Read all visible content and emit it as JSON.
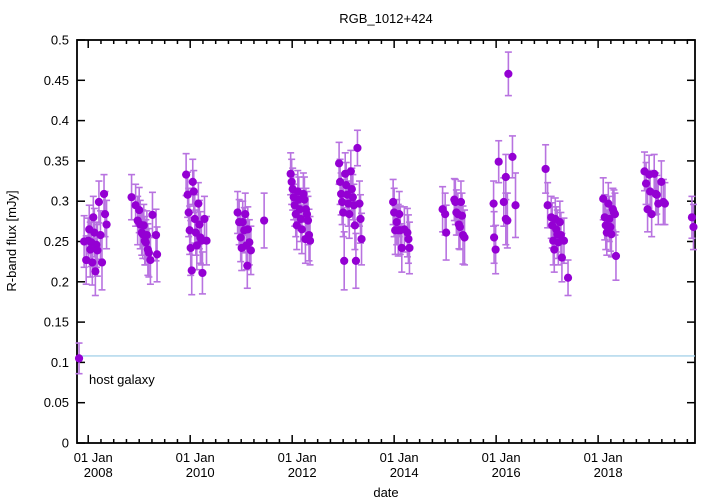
{
  "chart_data": {
    "type": "scatter",
    "title": "RGB_1012+424",
    "xlabel": "date",
    "ylabel": "R-band flux [mJy]",
    "grid": false,
    "legend": "none",
    "x_axis": {
      "range": [
        2007.78,
        2019.9
      ],
      "tick_years": [
        2008,
        2010,
        2012,
        2014,
        2016,
        2018
      ],
      "tick_label_line1": "01 Jan",
      "minor_tick_interval_years": 0.25
    },
    "y_axis": {
      "range": [
        0,
        0.5
      ],
      "tick_values": [
        0,
        0.05,
        0.1,
        0.15,
        0.2,
        0.25,
        0.3,
        0.35,
        0.4,
        0.45,
        0.5
      ],
      "tick_labels": [
        "0",
        "0.05",
        "0.1",
        "0.15",
        "0.2",
        "0.25",
        "0.3",
        "0.35",
        "0.4",
        "0.45",
        "0.5"
      ]
    },
    "host_galaxy_line": {
      "label": "host galaxy",
      "value": 0.108,
      "color": "#a9d4ea"
    },
    "series": [
      {
        "name": "R-band flux measurements",
        "marker": "filled-circle",
        "point_color": "#9400d3",
        "errorbar_color": "#b873e0",
        "points_format": [
          "date_decimal_year",
          "flux_mJy",
          "error_mJy"
        ],
        "points": [
          [
            2007.82,
            0.105,
            0.019
          ],
          [
            2007.92,
            0.25,
            0.032
          ],
          [
            2007.96,
            0.227,
            0.03
          ],
          [
            2008.0,
            0.251,
            0.028
          ],
          [
            2008.02,
            0.265,
            0.03
          ],
          [
            2008.04,
            0.24,
            0.034
          ],
          [
            2008.06,
            0.249,
            0.03
          ],
          [
            2008.08,
            0.224,
            0.028
          ],
          [
            2008.1,
            0.28,
            0.026
          ],
          [
            2008.12,
            0.261,
            0.03
          ],
          [
            2008.14,
            0.213,
            0.03
          ],
          [
            2008.16,
            0.246,
            0.028
          ],
          [
            2008.18,
            0.239,
            0.032
          ],
          [
            2008.21,
            0.299,
            0.026
          ],
          [
            2008.24,
            0.258,
            0.03
          ],
          [
            2008.27,
            0.224,
            0.034
          ],
          [
            2008.31,
            0.309,
            0.024
          ],
          [
            2008.33,
            0.284,
            0.028
          ],
          [
            2008.36,
            0.271,
            0.03
          ],
          [
            2008.85,
            0.305,
            0.028
          ],
          [
            2008.93,
            0.295,
            0.026
          ],
          [
            2008.97,
            0.276,
            0.03
          ],
          [
            2009.0,
            0.289,
            0.028
          ],
          [
            2009.02,
            0.271,
            0.03
          ],
          [
            2009.05,
            0.261,
            0.028
          ],
          [
            2009.07,
            0.259,
            0.03
          ],
          [
            2009.09,
            0.27,
            0.026
          ],
          [
            2009.11,
            0.251,
            0.03
          ],
          [
            2009.13,
            0.249,
            0.028
          ],
          [
            2009.15,
            0.258,
            0.03
          ],
          [
            2009.17,
            0.24,
            0.032
          ],
          [
            2009.19,
            0.236,
            0.03
          ],
          [
            2009.22,
            0.227,
            0.03
          ],
          [
            2009.26,
            0.283,
            0.028
          ],
          [
            2009.33,
            0.258,
            0.032
          ],
          [
            2009.35,
            0.234,
            0.034
          ],
          [
            2009.92,
            0.333,
            0.026
          ],
          [
            2009.95,
            0.308,
            0.028
          ],
          [
            2009.97,
            0.286,
            0.03
          ],
          [
            2009.99,
            0.264,
            0.03
          ],
          [
            2010.01,
            0.242,
            0.034
          ],
          [
            2010.03,
            0.214,
            0.03
          ],
          [
            2010.05,
            0.324,
            0.028
          ],
          [
            2010.07,
            0.312,
            0.026
          ],
          [
            2010.09,
            0.278,
            0.03
          ],
          [
            2010.11,
            0.261,
            0.028
          ],
          [
            2010.13,
            0.245,
            0.03
          ],
          [
            2010.16,
            0.297,
            0.026
          ],
          [
            2010.18,
            0.271,
            0.03
          ],
          [
            2010.2,
            0.255,
            0.032
          ],
          [
            2010.22,
            0.251,
            0.03
          ],
          [
            2010.24,
            0.211,
            0.026
          ],
          [
            2010.28,
            0.278,
            0.028
          ],
          [
            2010.32,
            0.251,
            0.03
          ],
          [
            2010.93,
            0.286,
            0.026
          ],
          [
            2010.96,
            0.274,
            0.028
          ],
          [
            2010.99,
            0.255,
            0.03
          ],
          [
            2011.01,
            0.242,
            0.028
          ],
          [
            2011.03,
            0.274,
            0.026
          ],
          [
            2011.06,
            0.264,
            0.028
          ],
          [
            2011.08,
            0.284,
            0.026
          ],
          [
            2011.1,
            0.245,
            0.03
          ],
          [
            2011.12,
            0.22,
            0.028
          ],
          [
            2011.13,
            0.265,
            0.028
          ],
          [
            2011.16,
            0.249,
            0.028
          ],
          [
            2011.19,
            0.239,
            0.03
          ],
          [
            2011.45,
            0.276,
            0.034
          ],
          [
            2011.97,
            0.334,
            0.026
          ],
          [
            2011.99,
            0.324,
            0.028
          ],
          [
            2012.01,
            0.315,
            0.026
          ],
          [
            2012.03,
            0.305,
            0.028
          ],
          [
            2012.05,
            0.295,
            0.026
          ],
          [
            2012.07,
            0.284,
            0.028
          ],
          [
            2012.09,
            0.27,
            0.03
          ],
          [
            2012.11,
            0.312,
            0.026
          ],
          [
            2012.13,
            0.302,
            0.028
          ],
          [
            2012.15,
            0.29,
            0.026
          ],
          [
            2012.17,
            0.278,
            0.028
          ],
          [
            2012.19,
            0.265,
            0.03
          ],
          [
            2012.22,
            0.309,
            0.026
          ],
          [
            2012.24,
            0.302,
            0.028
          ],
          [
            2012.26,
            0.253,
            0.03
          ],
          [
            2012.27,
            0.29,
            0.026
          ],
          [
            2012.29,
            0.284,
            0.028
          ],
          [
            2012.31,
            0.276,
            0.03
          ],
          [
            2012.33,
            0.258,
            0.032
          ],
          [
            2012.35,
            0.251,
            0.03
          ],
          [
            2012.92,
            0.347,
            0.026
          ],
          [
            2012.94,
            0.324,
            0.028
          ],
          [
            2012.96,
            0.309,
            0.026
          ],
          [
            2012.98,
            0.299,
            0.028
          ],
          [
            2013.0,
            0.286,
            0.03
          ],
          [
            2013.02,
            0.226,
            0.036
          ],
          [
            2013.04,
            0.334,
            0.026
          ],
          [
            2013.06,
            0.32,
            0.028
          ],
          [
            2013.08,
            0.308,
            0.026
          ],
          [
            2013.1,
            0.297,
            0.028
          ],
          [
            2013.12,
            0.284,
            0.03
          ],
          [
            2013.15,
            0.337,
            0.026
          ],
          [
            2013.17,
            0.315,
            0.026
          ],
          [
            2013.19,
            0.305,
            0.028
          ],
          [
            2013.21,
            0.295,
            0.026
          ],
          [
            2013.23,
            0.27,
            0.03
          ],
          [
            2013.25,
            0.226,
            0.034
          ],
          [
            2013.28,
            0.366,
            0.022
          ],
          [
            2013.32,
            0.297,
            0.028
          ],
          [
            2013.34,
            0.278,
            0.03
          ],
          [
            2013.36,
            0.253,
            0.032
          ],
          [
            2013.98,
            0.299,
            0.028
          ],
          [
            2014.0,
            0.286,
            0.03
          ],
          [
            2014.02,
            0.264,
            0.03
          ],
          [
            2014.05,
            0.274,
            0.028
          ],
          [
            2014.08,
            0.264,
            0.032
          ],
          [
            2014.1,
            0.284,
            0.028
          ],
          [
            2014.12,
            0.264,
            0.03
          ],
          [
            2014.15,
            0.242,
            0.03
          ],
          [
            2014.2,
            0.265,
            0.028
          ],
          [
            2014.26,
            0.261,
            0.03
          ],
          [
            2014.28,
            0.253,
            0.03
          ],
          [
            2014.3,
            0.242,
            0.032
          ],
          [
            2014.95,
            0.29,
            0.028
          ],
          [
            2015.0,
            0.284,
            0.026
          ],
          [
            2015.02,
            0.261,
            0.034
          ],
          [
            2015.18,
            0.302,
            0.026
          ],
          [
            2015.2,
            0.299,
            0.028
          ],
          [
            2015.22,
            0.286,
            0.028
          ],
          [
            2015.25,
            0.284,
            0.026
          ],
          [
            2015.27,
            0.271,
            0.03
          ],
          [
            2015.29,
            0.268,
            0.028
          ],
          [
            2015.31,
            0.299,
            0.026
          ],
          [
            2015.33,
            0.282,
            0.028
          ],
          [
            2015.35,
            0.258,
            0.036
          ],
          [
            2015.38,
            0.255,
            0.034
          ],
          [
            2015.95,
            0.297,
            0.028
          ],
          [
            2015.96,
            0.255,
            0.032
          ],
          [
            2015.99,
            0.24,
            0.03
          ],
          [
            2016.05,
            0.349,
            0.026
          ],
          [
            2016.15,
            0.299,
            0.03
          ],
          [
            2016.19,
            0.33,
            0.028
          ],
          [
            2016.19,
            0.278,
            0.032
          ],
          [
            2016.22,
            0.276,
            0.034
          ],
          [
            2016.24,
            0.458,
            0.027
          ],
          [
            2016.32,
            0.355,
            0.026
          ],
          [
            2016.38,
            0.295,
            0.04
          ],
          [
            2016.97,
            0.34,
            0.03
          ],
          [
            2017.01,
            0.295,
            0.028
          ],
          [
            2017.08,
            0.28,
            0.026
          ],
          [
            2017.1,
            0.27,
            0.028
          ],
          [
            2017.12,
            0.251,
            0.03
          ],
          [
            2017.14,
            0.24,
            0.028
          ],
          [
            2017.16,
            0.278,
            0.026
          ],
          [
            2017.18,
            0.265,
            0.028
          ],
          [
            2017.2,
            0.259,
            0.03
          ],
          [
            2017.22,
            0.249,
            0.028
          ],
          [
            2017.25,
            0.274,
            0.026
          ],
          [
            2017.27,
            0.258,
            0.028
          ],
          [
            2017.29,
            0.23,
            0.03
          ],
          [
            2017.33,
            0.251,
            0.028
          ],
          [
            2017.41,
            0.205,
            0.022
          ],
          [
            2018.1,
            0.303,
            0.026
          ],
          [
            2018.13,
            0.28,
            0.028
          ],
          [
            2018.15,
            0.27,
            0.03
          ],
          [
            2018.17,
            0.261,
            0.028
          ],
          [
            2018.2,
            0.297,
            0.026
          ],
          [
            2018.22,
            0.278,
            0.028
          ],
          [
            2018.24,
            0.268,
            0.03
          ],
          [
            2018.26,
            0.259,
            0.028
          ],
          [
            2018.29,
            0.29,
            0.026
          ],
          [
            2018.31,
            0.286,
            0.028
          ],
          [
            2018.33,
            0.284,
            0.026
          ],
          [
            2018.35,
            0.232,
            0.03
          ],
          [
            2018.91,
            0.337,
            0.024
          ],
          [
            2018.94,
            0.322,
            0.026
          ],
          [
            2018.97,
            0.29,
            0.028
          ],
          [
            2019.0,
            0.333,
            0.024
          ],
          [
            2019.02,
            0.312,
            0.026
          ],
          [
            2019.05,
            0.284,
            0.028
          ],
          [
            2019.1,
            0.334,
            0.024
          ],
          [
            2019.13,
            0.309,
            0.026
          ],
          [
            2019.15,
            0.308,
            0.024
          ],
          [
            2019.18,
            0.297,
            0.026
          ],
          [
            2019.24,
            0.324,
            0.026
          ],
          [
            2019.28,
            0.299,
            0.028
          ],
          [
            2019.31,
            0.297,
            0.026
          ],
          [
            2019.84,
            0.28,
            0.026
          ],
          [
            2019.87,
            0.268,
            0.028
          ]
        ]
      }
    ]
  }
}
